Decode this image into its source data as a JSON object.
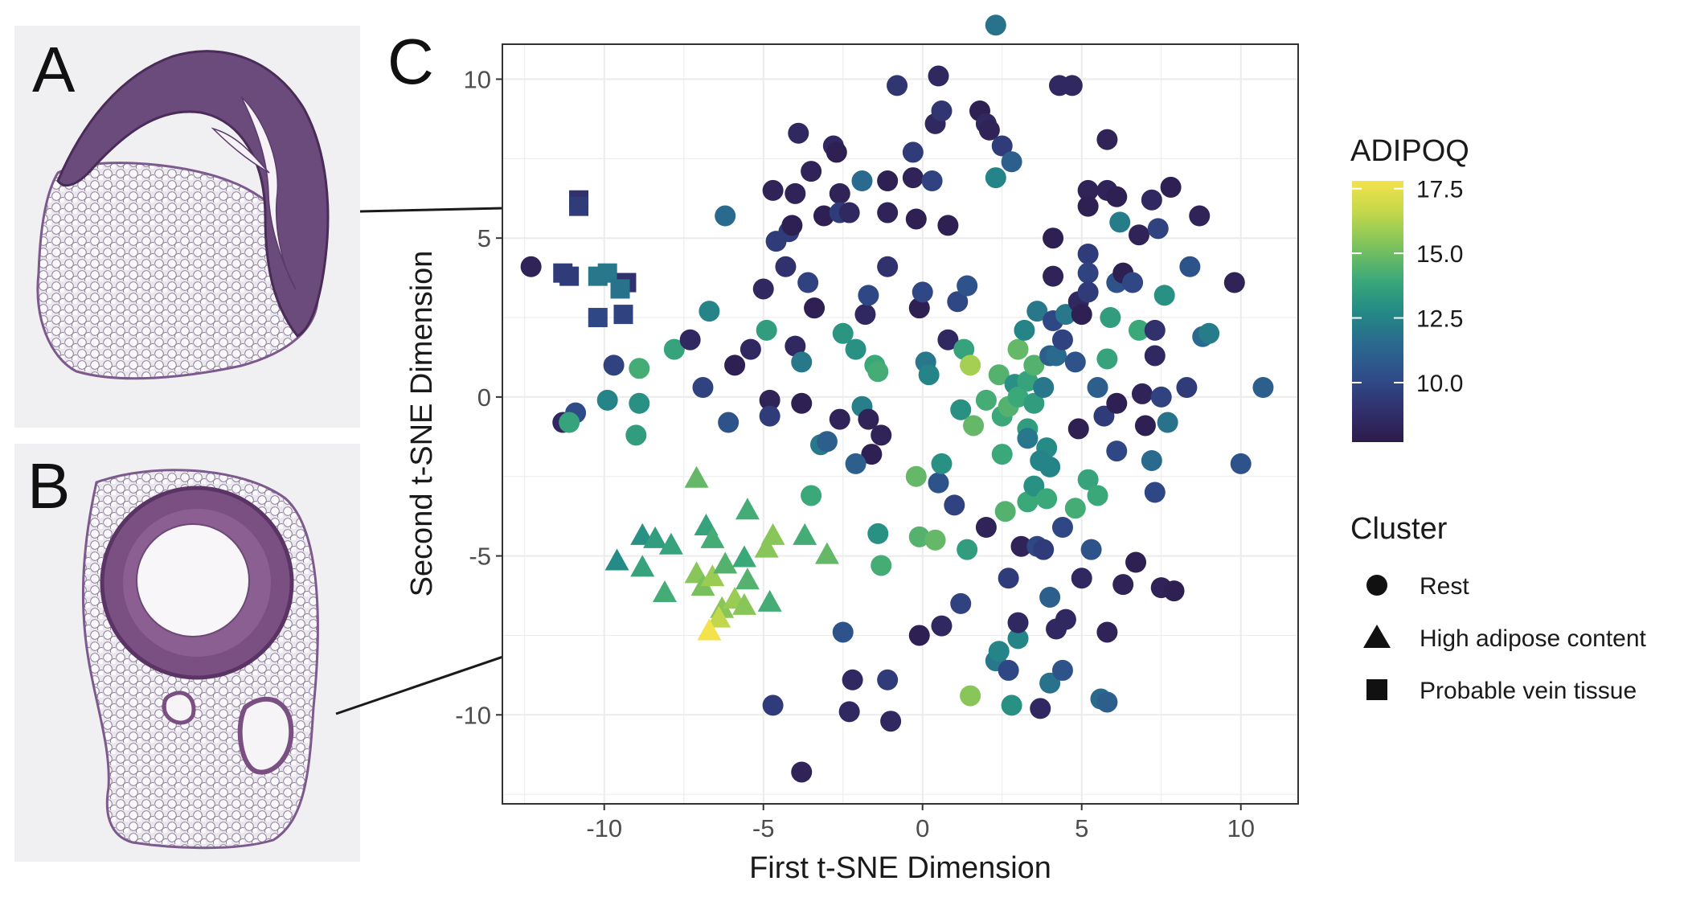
{
  "panels": {
    "a_label": "A",
    "b_label": "B",
    "c_label": "C"
  },
  "chart_data": {
    "type": "scatter",
    "title": "",
    "xlabel": "First t-SNE Dimension",
    "ylabel": "Second t-SNE Dimension",
    "xlim": [
      -13.2,
      11.8
    ],
    "ylim": [
      -12.8,
      11.1
    ],
    "xticks": [
      -10,
      -5,
      0,
      5,
      10
    ],
    "yticks": [
      -10,
      -5,
      0,
      5,
      10
    ],
    "grid": true,
    "color_legend": {
      "title": "ADIPOQ",
      "range": [
        7.7,
        17.8
      ],
      "ticks": [
        10.0,
        12.5,
        15.0,
        17.5
      ],
      "tick_labels": [
        "10.0",
        "12.5",
        "15.0",
        "17.5"
      ],
      "colors": [
        "#2d1b4b",
        "#31306c",
        "#2f4d8a",
        "#2a6a8e",
        "#248a86",
        "#3ba87a",
        "#7cc25c",
        "#c3d84b",
        "#f3e24c"
      ]
    },
    "shape_legend": {
      "title": "Cluster",
      "entries": [
        {
          "shape": "circle",
          "label": "Rest"
        },
        {
          "shape": "triangle",
          "label": "High adipose content"
        },
        {
          "shape": "square",
          "label": "Probable vein tissue"
        }
      ]
    },
    "points": [
      [
        -12.3,
        4.1,
        8.2,
        "circle"
      ],
      [
        -11.3,
        -0.8,
        8.5,
        "circle"
      ],
      [
        -10.9,
        -0.5,
        10.2,
        "circle"
      ],
      [
        -11.1,
        -0.8,
        13.8,
        "circle"
      ],
      [
        -9.9,
        -0.1,
        12.5,
        "circle"
      ],
      [
        -9.7,
        1.0,
        9.8,
        "circle"
      ],
      [
        -9.0,
        -1.2,
        13.5,
        "circle"
      ],
      [
        -8.9,
        0.9,
        14.2,
        "circle"
      ],
      [
        -8.9,
        -0.2,
        13.0,
        "circle"
      ],
      [
        -7.8,
        1.5,
        13.8,
        "circle"
      ],
      [
        -7.3,
        1.8,
        8.5,
        "circle"
      ],
      [
        -6.9,
        0.3,
        9.8,
        "circle"
      ],
      [
        -6.7,
        2.7,
        12.5,
        "circle"
      ],
      [
        -6.1,
        -0.8,
        10.5,
        "circle"
      ],
      [
        -6.2,
        5.7,
        11.5,
        "circle"
      ],
      [
        -5.9,
        1.0,
        8.0,
        "circle"
      ],
      [
        -5.4,
        1.5,
        8.5,
        "circle"
      ],
      [
        -5.0,
        3.4,
        8.5,
        "circle"
      ],
      [
        -4.9,
        2.1,
        13.5,
        "circle"
      ],
      [
        -4.8,
        -0.1,
        8.2,
        "circle"
      ],
      [
        -4.8,
        -0.6,
        9.5,
        "circle"
      ],
      [
        -4.7,
        6.5,
        8.2,
        "circle"
      ],
      [
        -4.6,
        4.9,
        9.5,
        "circle"
      ],
      [
        -4.3,
        4.1,
        9.0,
        "circle"
      ],
      [
        -4.2,
        5.2,
        9.5,
        "circle"
      ],
      [
        -4.1,
        5.4,
        8.0,
        "circle"
      ],
      [
        -4.0,
        6.4,
        8.2,
        "circle"
      ],
      [
        -4.0,
        1.6,
        8.5,
        "circle"
      ],
      [
        -3.9,
        8.3,
        8.5,
        "circle"
      ],
      [
        -3.8,
        -0.2,
        8.0,
        "circle"
      ],
      [
        -3.8,
        1.1,
        12.0,
        "circle"
      ],
      [
        -3.6,
        3.6,
        9.8,
        "circle"
      ],
      [
        -3.5,
        7.1,
        8.2,
        "circle"
      ],
      [
        -3.4,
        2.8,
        8.0,
        "circle"
      ],
      [
        -3.2,
        -1.5,
        12.0,
        "circle"
      ],
      [
        -3.1,
        5.7,
        8.0,
        "circle"
      ],
      [
        -3.0,
        -1.4,
        11.0,
        "circle"
      ],
      [
        -2.8,
        7.9,
        8.5,
        "circle"
      ],
      [
        -2.7,
        7.7,
        8.0,
        "circle"
      ],
      [
        -2.6,
        6.4,
        8.2,
        "circle"
      ],
      [
        -2.6,
        5.8,
        9.5,
        "circle"
      ],
      [
        -2.5,
        2.0,
        13.2,
        "circle"
      ],
      [
        -2.6,
        -0.7,
        8.2,
        "circle"
      ],
      [
        -2.3,
        5.8,
        8.5,
        "circle"
      ],
      [
        -2.1,
        1.5,
        13.0,
        "circle"
      ],
      [
        -1.9,
        -0.3,
        12.3,
        "circle"
      ],
      [
        -1.9,
        6.8,
        11.5,
        "circle"
      ],
      [
        -1.8,
        2.6,
        8.5,
        "circle"
      ],
      [
        -1.7,
        3.2,
        10.0,
        "circle"
      ],
      [
        -1.7,
        -0.7,
        8.2,
        "circle"
      ],
      [
        -1.6,
        -1.8,
        8.0,
        "circle"
      ],
      [
        -1.5,
        1.0,
        14.0,
        "circle"
      ],
      [
        -1.4,
        0.8,
        14.2,
        "circle"
      ],
      [
        -1.3,
        -1.2,
        8.2,
        "circle"
      ],
      [
        -1.1,
        4.1,
        9.0,
        "circle"
      ],
      [
        -1.1,
        6.8,
        8.0,
        "circle"
      ],
      [
        -1.1,
        5.8,
        8.2,
        "circle"
      ],
      [
        -0.8,
        9.8,
        9.2,
        "circle"
      ],
      [
        -0.3,
        7.7,
        9.5,
        "circle"
      ],
      [
        -0.3,
        6.9,
        8.2,
        "circle"
      ],
      [
        -0.2,
        5.6,
        8.0,
        "circle"
      ],
      [
        -0.1,
        2.8,
        8.0,
        "circle"
      ],
      [
        0.0,
        3.3,
        10.0,
        "circle"
      ],
      [
        0.1,
        1.1,
        12.0,
        "circle"
      ],
      [
        0.2,
        0.7,
        12.5,
        "circle"
      ],
      [
        0.3,
        6.8,
        9.8,
        "circle"
      ],
      [
        0.4,
        8.6,
        8.5,
        "circle"
      ],
      [
        0.5,
        10.1,
        8.5,
        "circle"
      ],
      [
        0.6,
        9.0,
        9.2,
        "circle"
      ],
      [
        0.8,
        5.4,
        8.0,
        "circle"
      ],
      [
        0.8,
        1.8,
        8.5,
        "circle"
      ],
      [
        1.1,
        3.0,
        10.0,
        "circle"
      ],
      [
        1.2,
        -0.4,
        13.0,
        "circle"
      ],
      [
        1.3,
        1.5,
        13.8,
        "circle"
      ],
      [
        1.4,
        3.5,
        10.5,
        "circle"
      ],
      [
        1.5,
        1.0,
        16.0,
        "circle"
      ],
      [
        1.8,
        9.0,
        8.0,
        "circle"
      ],
      [
        2.0,
        8.6,
        8.5,
        "circle"
      ],
      [
        2.1,
        8.4,
        8.2,
        "circle"
      ],
      [
        2.3,
        6.9,
        12.5,
        "circle"
      ],
      [
        2.3,
        11.7,
        11.8,
        "circle"
      ],
      [
        2.5,
        7.9,
        9.5,
        "circle"
      ],
      [
        2.8,
        7.4,
        11.0,
        "circle"
      ],
      [
        1.6,
        -0.9,
        14.8,
        "circle"
      ],
      [
        2.0,
        -0.1,
        14.2,
        "circle"
      ],
      [
        2.4,
        0.7,
        14.5,
        "circle"
      ],
      [
        2.5,
        -0.6,
        14.0,
        "circle"
      ],
      [
        2.7,
        -0.3,
        14.5,
        "circle"
      ],
      [
        2.9,
        0.4,
        13.0,
        "circle"
      ],
      [
        3.0,
        0.0,
        14.0,
        "circle"
      ],
      [
        3.0,
        1.5,
        14.8,
        "circle"
      ],
      [
        3.2,
        2.1,
        12.5,
        "circle"
      ],
      [
        3.3,
        -1.0,
        13.5,
        "circle"
      ],
      [
        3.3,
        0.5,
        13.8,
        "circle"
      ],
      [
        3.3,
        -1.3,
        12.0,
        "circle"
      ],
      [
        3.5,
        -0.2,
        13.5,
        "circle"
      ],
      [
        3.5,
        1.0,
        14.5,
        "circle"
      ],
      [
        3.6,
        2.7,
        12.0,
        "circle"
      ],
      [
        3.8,
        0.3,
        12.0,
        "circle"
      ],
      [
        3.9,
        -1.6,
        12.8,
        "circle"
      ],
      [
        4.0,
        1.3,
        11.0,
        "circle"
      ],
      [
        4.1,
        2.4,
        10.0,
        "circle"
      ],
      [
        4.1,
        3.8,
        8.2,
        "circle"
      ],
      [
        4.1,
        5.0,
        8.0,
        "circle"
      ],
      [
        4.2,
        1.3,
        11.5,
        "circle"
      ],
      [
        4.3,
        9.8,
        8.5,
        "circle"
      ],
      [
        4.4,
        1.8,
        9.8,
        "circle"
      ],
      [
        4.5,
        2.6,
        12.0,
        "circle"
      ],
      [
        4.7,
        9.8,
        8.5,
        "circle"
      ],
      [
        4.8,
        1.1,
        10.5,
        "circle"
      ],
      [
        4.9,
        3.0,
        8.5,
        "circle"
      ],
      [
        4.9,
        -1.0,
        8.0,
        "circle"
      ],
      [
        5.0,
        2.6,
        8.0,
        "circle"
      ],
      [
        5.2,
        4.5,
        9.5,
        "circle"
      ],
      [
        5.2,
        3.9,
        9.8,
        "circle"
      ],
      [
        5.2,
        3.3,
        9.5,
        "circle"
      ],
      [
        5.2,
        6.5,
        8.2,
        "circle"
      ],
      [
        5.2,
        6.0,
        8.0,
        "circle"
      ],
      [
        5.5,
        0.3,
        11.0,
        "circle"
      ],
      [
        5.7,
        -0.6,
        9.5,
        "circle"
      ],
      [
        5.8,
        1.2,
        13.8,
        "circle"
      ],
      [
        5.8,
        6.5,
        8.2,
        "circle"
      ],
      [
        5.8,
        8.1,
        8.2,
        "circle"
      ],
      [
        5.9,
        2.5,
        13.5,
        "circle"
      ],
      [
        6.1,
        3.6,
        10.5,
        "circle"
      ],
      [
        6.1,
        6.3,
        8.0,
        "circle"
      ],
      [
        6.1,
        -0.2,
        8.0,
        "circle"
      ],
      [
        6.2,
        5.5,
        12.2,
        "circle"
      ],
      [
        6.3,
        3.9,
        8.0,
        "circle"
      ],
      [
        6.6,
        3.6,
        10.0,
        "circle"
      ],
      [
        6.8,
        2.1,
        14.0,
        "circle"
      ],
      [
        6.8,
        5.1,
        8.2,
        "circle"
      ],
      [
        6.9,
        0.1,
        8.2,
        "circle"
      ],
      [
        7.0,
        -0.9,
        8.0,
        "circle"
      ],
      [
        7.2,
        6.2,
        8.5,
        "circle"
      ],
      [
        7.3,
        2.1,
        9.0,
        "circle"
      ],
      [
        7.3,
        1.3,
        8.5,
        "circle"
      ],
      [
        7.4,
        5.3,
        9.8,
        "circle"
      ],
      [
        7.5,
        0.0,
        9.8,
        "circle"
      ],
      [
        7.6,
        3.2,
        13.0,
        "circle"
      ],
      [
        7.7,
        -0.8,
        11.8,
        "circle"
      ],
      [
        7.8,
        6.6,
        8.0,
        "circle"
      ],
      [
        8.3,
        0.3,
        9.5,
        "circle"
      ],
      [
        8.4,
        4.1,
        10.5,
        "circle"
      ],
      [
        8.7,
        5.7,
        8.2,
        "circle"
      ],
      [
        8.8,
        1.9,
        11.5,
        "circle"
      ],
      [
        9.0,
        2.0,
        12.2,
        "circle"
      ],
      [
        9.8,
        3.6,
        8.2,
        "circle"
      ],
      [
        10.0,
        -2.1,
        10.5,
        "circle"
      ],
      [
        10.7,
        0.3,
        11.0,
        "circle"
      ],
      [
        -3.5,
        -3.1,
        14.0,
        "circle"
      ],
      [
        -2.5,
        -7.4,
        10.5,
        "circle"
      ],
      [
        -2.3,
        -9.9,
        8.5,
        "circle"
      ],
      [
        -2.2,
        -8.9,
        8.5,
        "circle"
      ],
      [
        -2.1,
        -2.1,
        11.0,
        "circle"
      ],
      [
        -1.4,
        -4.3,
        13.0,
        "circle"
      ],
      [
        -1.3,
        -5.3,
        14.2,
        "circle"
      ],
      [
        -1.0,
        -10.2,
        8.5,
        "circle"
      ],
      [
        -1.1,
        -8.9,
        9.5,
        "circle"
      ],
      [
        -0.2,
        -2.5,
        14.8,
        "circle"
      ],
      [
        -0.1,
        -4.4,
        14.5,
        "circle"
      ],
      [
        -0.1,
        -7.5,
        8.0,
        "circle"
      ],
      [
        0.4,
        -4.5,
        14.8,
        "circle"
      ],
      [
        0.5,
        -2.7,
        10.5,
        "circle"
      ],
      [
        0.6,
        -2.1,
        13.0,
        "circle"
      ],
      [
        0.6,
        -7.2,
        8.5,
        "circle"
      ],
      [
        1.0,
        -3.4,
        9.8,
        "circle"
      ],
      [
        1.2,
        -6.5,
        9.8,
        "circle"
      ],
      [
        1.4,
        -4.8,
        13.5,
        "circle"
      ],
      [
        1.5,
        -9.4,
        15.5,
        "circle"
      ],
      [
        2.0,
        -4.1,
        8.2,
        "circle"
      ],
      [
        2.3,
        -8.3,
        12.0,
        "circle"
      ],
      [
        2.4,
        -8.0,
        12.5,
        "circle"
      ],
      [
        2.5,
        -1.8,
        14.0,
        "circle"
      ],
      [
        2.6,
        -3.6,
        14.5,
        "circle"
      ],
      [
        2.7,
        -5.7,
        9.5,
        "circle"
      ],
      [
        2.8,
        -9.7,
        13.0,
        "circle"
      ],
      [
        2.7,
        -8.6,
        10.0,
        "circle"
      ],
      [
        3.0,
        -7.6,
        12.5,
        "circle"
      ],
      [
        3.0,
        -7.1,
        8.5,
        "circle"
      ],
      [
        3.1,
        -4.7,
        8.2,
        "circle"
      ],
      [
        3.3,
        -3.3,
        14.0,
        "circle"
      ],
      [
        3.5,
        -2.8,
        13.0,
        "circle"
      ],
      [
        3.6,
        -4.7,
        10.0,
        "circle"
      ],
      [
        3.7,
        -2.0,
        12.5,
        "circle"
      ],
      [
        3.7,
        -9.8,
        8.5,
        "circle"
      ],
      [
        3.8,
        -4.8,
        9.5,
        "circle"
      ],
      [
        3.9,
        -3.2,
        14.0,
        "circle"
      ],
      [
        4.0,
        -2.2,
        12.5,
        "circle"
      ],
      [
        4.0,
        -6.3,
        11.0,
        "circle"
      ],
      [
        4.0,
        -9.0,
        11.8,
        "circle"
      ],
      [
        4.2,
        -7.3,
        8.5,
        "circle"
      ],
      [
        4.4,
        -8.6,
        10.5,
        "circle"
      ],
      [
        4.4,
        -4.1,
        10.0,
        "circle"
      ],
      [
        4.5,
        -7.0,
        8.5,
        "circle"
      ],
      [
        4.8,
        -3.5,
        14.2,
        "circle"
      ],
      [
        5.0,
        -5.7,
        8.5,
        "circle"
      ],
      [
        5.2,
        -2.6,
        13.8,
        "circle"
      ],
      [
        5.3,
        -4.8,
        10.5,
        "circle"
      ],
      [
        5.5,
        -3.1,
        14.0,
        "circle"
      ],
      [
        5.6,
        -9.5,
        11.5,
        "circle"
      ],
      [
        5.8,
        -7.4,
        8.2,
        "circle"
      ],
      [
        5.8,
        -9.6,
        11.0,
        "circle"
      ],
      [
        6.1,
        -1.7,
        10.0,
        "circle"
      ],
      [
        6.3,
        -5.9,
        8.2,
        "circle"
      ],
      [
        6.7,
        -5.2,
        8.0,
        "circle"
      ],
      [
        7.2,
        -2.0,
        11.5,
        "circle"
      ],
      [
        7.3,
        -3.0,
        10.0,
        "circle"
      ],
      [
        7.5,
        -6.0,
        8.2,
        "circle"
      ],
      [
        7.9,
        -6.1,
        8.0,
        "circle"
      ],
      [
        -3.8,
        -11.8,
        8.2,
        "circle"
      ],
      [
        -4.7,
        -9.7,
        9.5,
        "circle"
      ],
      [
        -7.1,
        -2.6,
        14.8,
        "triangle"
      ],
      [
        -5.5,
        -3.6,
        14.2,
        "triangle"
      ],
      [
        -9.6,
        -5.2,
        12.8,
        "triangle"
      ],
      [
        -8.8,
        -4.4,
        13.0,
        "triangle"
      ],
      [
        -8.8,
        -5.4,
        13.8,
        "triangle"
      ],
      [
        -8.4,
        -4.5,
        13.5,
        "triangle"
      ],
      [
        -8.1,
        -6.2,
        14.2,
        "triangle"
      ],
      [
        -7.9,
        -4.7,
        13.8,
        "triangle"
      ],
      [
        -6.8,
        -4.1,
        13.8,
        "triangle"
      ],
      [
        -6.6,
        -4.5,
        14.2,
        "triangle"
      ],
      [
        -7.1,
        -5.6,
        15.5,
        "triangle"
      ],
      [
        -6.9,
        -6.0,
        15.2,
        "triangle"
      ],
      [
        -6.6,
        -5.7,
        15.8,
        "triangle"
      ],
      [
        -6.2,
        -5.3,
        14.5,
        "triangle"
      ],
      [
        -6.3,
        -6.7,
        15.5,
        "triangle"
      ],
      [
        -6.4,
        -7.0,
        16.5,
        "triangle"
      ],
      [
        -6.7,
        -7.4,
        17.8,
        "triangle"
      ],
      [
        -5.9,
        -6.4,
        15.8,
        "triangle"
      ],
      [
        -5.6,
        -5.1,
        14.0,
        "triangle"
      ],
      [
        -5.5,
        -5.8,
        14.5,
        "triangle"
      ],
      [
        -5.6,
        -6.6,
        15.5,
        "triangle"
      ],
      [
        -4.9,
        -4.8,
        15.5,
        "triangle"
      ],
      [
        -4.7,
        -4.4,
        15.5,
        "triangle"
      ],
      [
        -4.8,
        -6.5,
        14.2,
        "triangle"
      ],
      [
        -3.7,
        -4.4,
        14.2,
        "triangle"
      ],
      [
        -3.0,
        -5.0,
        14.8,
        "triangle"
      ],
      [
        -10.8,
        6.2,
        9.0,
        "square"
      ],
      [
        -10.8,
        6.0,
        9.5,
        "square"
      ],
      [
        -11.3,
        3.9,
        9.5,
        "square"
      ],
      [
        -11.1,
        3.8,
        9.5,
        "square"
      ],
      [
        -10.2,
        3.8,
        12.0,
        "square"
      ],
      [
        -9.9,
        3.9,
        12.0,
        "square"
      ],
      [
        -9.3,
        3.6,
        9.0,
        "square"
      ],
      [
        -9.5,
        3.4,
        11.8,
        "square"
      ],
      [
        -10.2,
        2.5,
        10.0,
        "square"
      ],
      [
        -9.4,
        2.6,
        9.8,
        "square"
      ]
    ]
  }
}
